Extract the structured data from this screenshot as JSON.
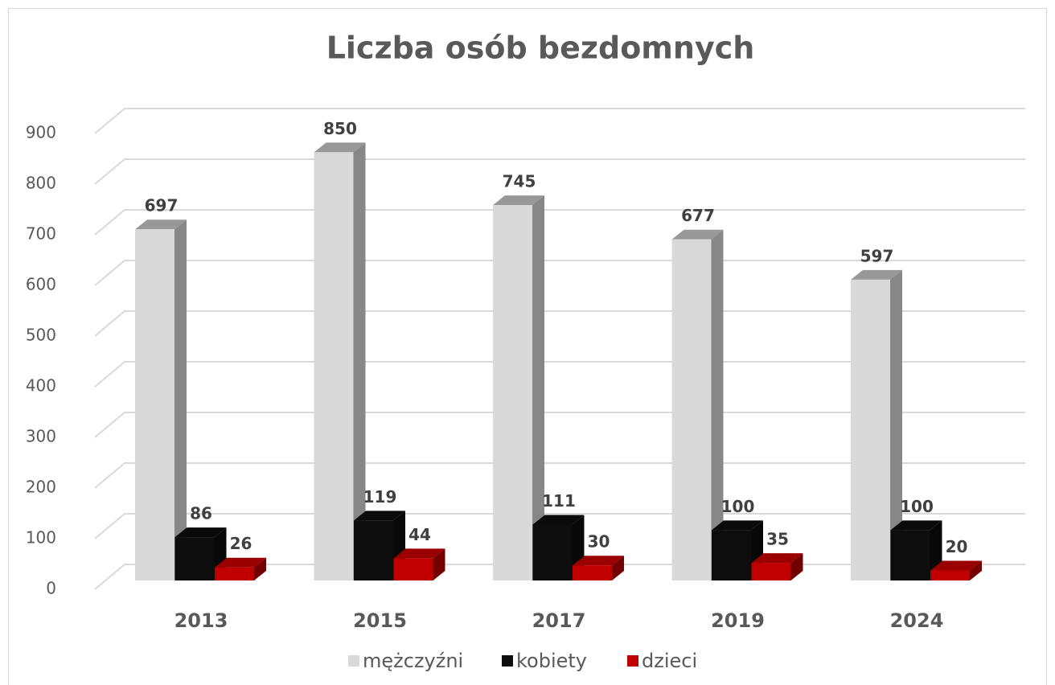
{
  "chart_data": {
    "type": "bar3d",
    "title": "Liczba osób bezdomnych",
    "categories": [
      "2013",
      "2015",
      "2017",
      "2019",
      "2024"
    ],
    "series": [
      {
        "name": "mężczyźni",
        "color": "#d9d9d9",
        "values": [
          697,
          850,
          745,
          677,
          597
        ]
      },
      {
        "name": "kobiety",
        "color": "#0d0d0d",
        "values": [
          86,
          119,
          111,
          100,
          100
        ]
      },
      {
        "name": "dzieci",
        "color": "#c00000",
        "values": [
          26,
          44,
          30,
          35,
          20
        ]
      }
    ],
    "ylim": [
      0,
      900
    ],
    "yticks": [
      0,
      100,
      200,
      300,
      400,
      500,
      600,
      700,
      800,
      900
    ],
    "grid": true,
    "legend": "bottom"
  }
}
